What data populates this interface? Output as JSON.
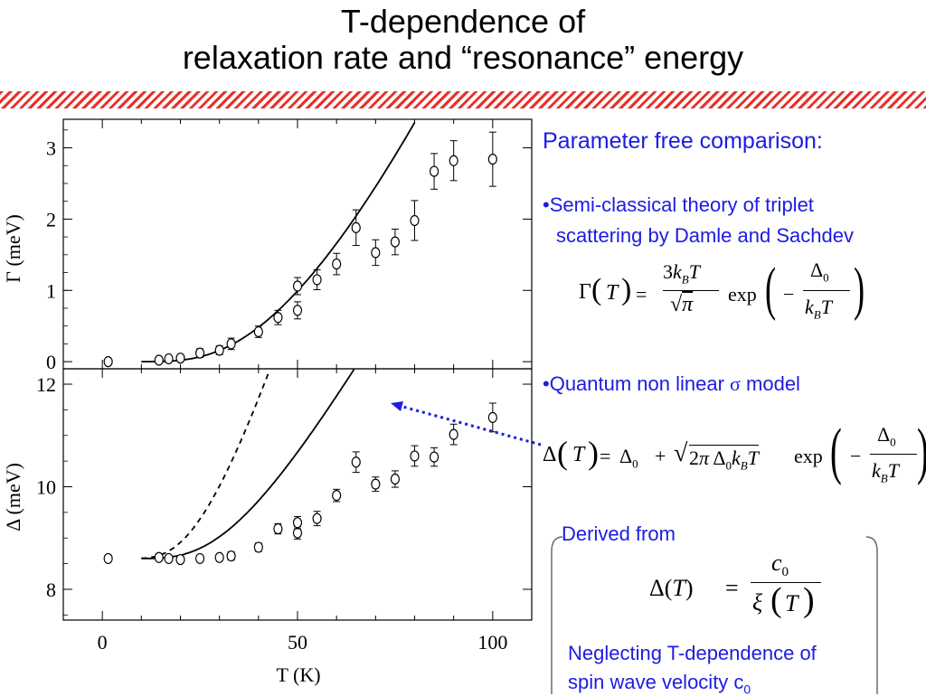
{
  "slide": {
    "title_line1": "T-dependence of",
    "title_line2": "relaxation rate and “resonance” energy"
  },
  "text": {
    "heading": "Parameter free comparison:",
    "bullet1_line1": "•Semi-classical theory of triplet",
    "bullet1_line2": "scattering by Damle and Sachdev",
    "bullet2_prefix": "•Quantum non linear ",
    "bullet2_symbol": "σ",
    "bullet2_suffix": " model",
    "derived_from": "Derived from",
    "neglect_line1": "Neglecting T-dependence of",
    "neglect_line2": "spin wave velocity c",
    "neglect_sub": "0"
  },
  "colors": {
    "accent": "#1c1ce0",
    "stripe": "#e8302a"
  },
  "chart_data": [
    {
      "type": "scatter",
      "panel": "top",
      "ylabel": "Γ (meV)",
      "xlim": [
        -10,
        110
      ],
      "ylim": [
        -0.1,
        3.4
      ],
      "yticks": [
        "0",
        "1",
        "2",
        "3"
      ],
      "series": [
        {
          "marker": "circle",
          "x": [
            1.5,
            14.5,
            17,
            20,
            25,
            30,
            33,
            40,
            45,
            50,
            50,
            55,
            60,
            65,
            70,
            75,
            80,
            85,
            90,
            100
          ],
          "y": [
            0.0,
            0.02,
            0.04,
            0.05,
            0.12,
            0.16,
            0.25,
            0.42,
            0.62,
            0.72,
            1.06,
            1.15,
            1.37,
            1.88,
            1.53,
            1.68,
            1.98,
            2.67,
            2.82,
            2.84
          ],
          "yerr": [
            0.03,
            0.04,
            0.04,
            0.04,
            0.06,
            0.06,
            0.08,
            0.08,
            0.1,
            0.12,
            0.12,
            0.14,
            0.15,
            0.25,
            0.18,
            0.18,
            0.28,
            0.25,
            0.28,
            0.38
          ]
        },
        {
          "line": "solid",
          "formula": "semi-classical"
        }
      ]
    },
    {
      "type": "scatter",
      "panel": "bottom",
      "xlabel": "T (K)",
      "ylabel": "Δ (meV)",
      "xlim": [
        -10,
        110
      ],
      "ylim": [
        7.4,
        12.3
      ],
      "xticks": [
        "0",
        "50",
        "100"
      ],
      "yticks": [
        "8",
        "10",
        "12"
      ],
      "series": [
        {
          "marker": "circle",
          "x": [
            1.5,
            14.5,
            17,
            20,
            25,
            30,
            33,
            40,
            45,
            50,
            50,
            55,
            60,
            65,
            70,
            75,
            80,
            85,
            90,
            100
          ],
          "y": [
            8.6,
            8.62,
            8.6,
            8.58,
            8.6,
            8.62,
            8.65,
            8.82,
            9.18,
            9.1,
            9.3,
            9.38,
            9.83,
            10.48,
            10.05,
            10.15,
            10.6,
            10.58,
            11.02,
            11.35
          ],
          "yerr": [
            0.06,
            0.06,
            0.06,
            0.06,
            0.06,
            0.06,
            0.08,
            0.08,
            0.1,
            0.12,
            0.12,
            0.14,
            0.12,
            0.2,
            0.14,
            0.16,
            0.2,
            0.18,
            0.2,
            0.28
          ]
        },
        {
          "line": "solid",
          "formula": "quantum non linear sigma model"
        },
        {
          "line": "dashed",
          "formula": "derived from correlation length"
        }
      ]
    }
  ]
}
